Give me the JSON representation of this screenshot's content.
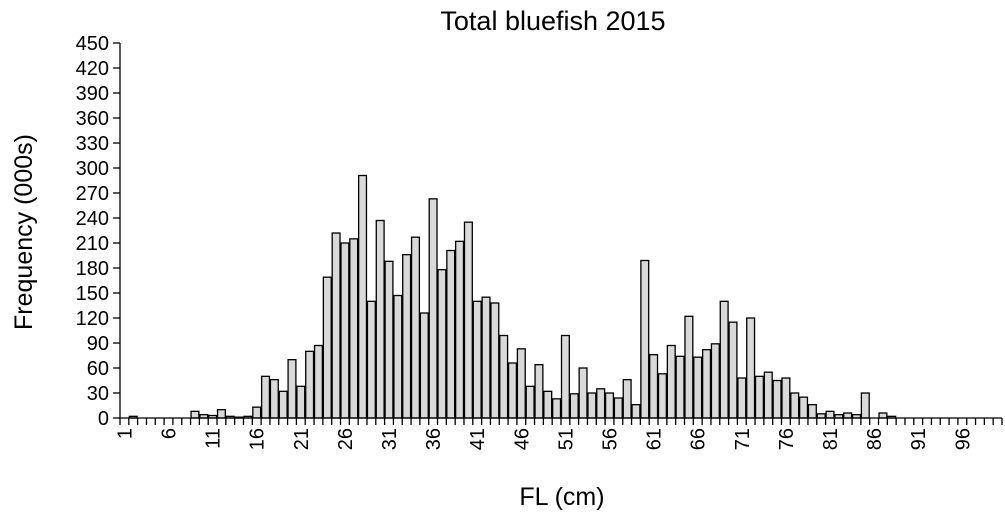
{
  "chart_data": {
    "type": "bar",
    "title": "Total bluefish 2015",
    "xlabel": "FL (cm)",
    "ylabel": "Frequency (000s)",
    "ylim": [
      0,
      450
    ],
    "yticks": [
      0,
      30,
      60,
      90,
      120,
      150,
      180,
      210,
      240,
      270,
      300,
      330,
      360,
      390,
      420,
      450
    ],
    "xtick_labels": [
      1,
      6,
      11,
      16,
      21,
      26,
      31,
      36,
      41,
      46,
      51,
      56,
      61,
      66,
      71,
      76,
      81,
      86,
      91,
      96
    ],
    "categories": [
      1,
      2,
      3,
      4,
      5,
      6,
      7,
      8,
      9,
      10,
      11,
      12,
      13,
      14,
      15,
      16,
      17,
      18,
      19,
      20,
      21,
      22,
      23,
      24,
      25,
      26,
      27,
      28,
      29,
      30,
      31,
      32,
      33,
      34,
      35,
      36,
      37,
      38,
      39,
      40,
      41,
      42,
      43,
      44,
      45,
      46,
      47,
      48,
      49,
      50,
      51,
      52,
      53,
      54,
      55,
      56,
      57,
      58,
      59,
      60,
      61,
      62,
      63,
      64,
      65,
      66,
      67,
      68,
      69,
      70,
      71,
      72,
      73,
      74,
      75,
      76,
      77,
      78,
      79,
      80,
      81,
      82,
      83,
      84,
      85,
      86,
      87,
      88,
      89,
      90,
      91,
      92,
      93,
      94,
      95,
      96,
      97,
      98,
      99,
      100
    ],
    "values": [
      0,
      2,
      0,
      0,
      0,
      0,
      0,
      0,
      8,
      4,
      3,
      10,
      2,
      1,
      2,
      13,
      50,
      46,
      32,
      70,
      38,
      80,
      87,
      169,
      222,
      210,
      215,
      291,
      140,
      237,
      188,
      147,
      196,
      217,
      126,
      263,
      178,
      201,
      212,
      235,
      140,
      145,
      138,
      99,
      66,
      83,
      38,
      64,
      32,
      23,
      99,
      29,
      60,
      30,
      35,
      30,
      24,
      46,
      16,
      189,
      76,
      53,
      87,
      74,
      122,
      73,
      82,
      89,
      140,
      115,
      48,
      120,
      50,
      55,
      45,
      48,
      30,
      25,
      16,
      5,
      8,
      4,
      6,
      4,
      30,
      0,
      6,
      2,
      0,
      0,
      0,
      0,
      0,
      0,
      0,
      0,
      0,
      0,
      0,
      0
    ],
    "bar_color": "#d9d9d9",
    "edge_color": "#000000",
    "grid": false,
    "legend": false
  }
}
